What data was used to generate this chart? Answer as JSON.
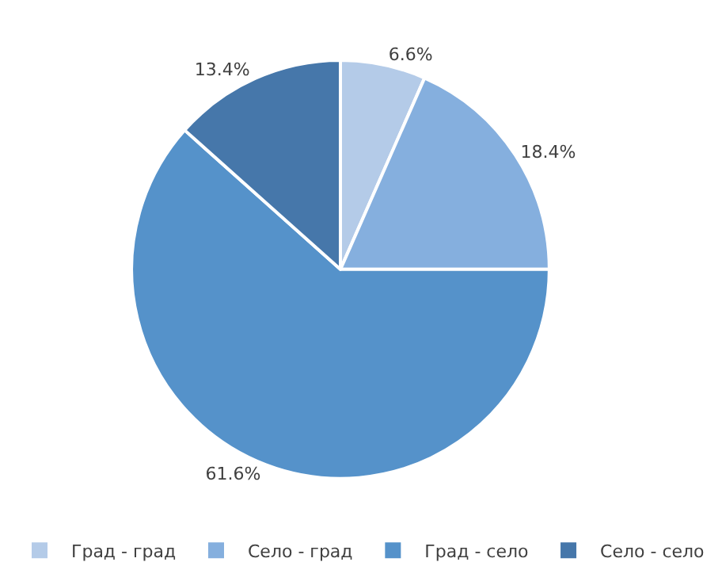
{
  "chart_data": {
    "type": "pie",
    "categories": [
      "Град - град",
      "Село - град",
      "Град - село",
      "Село - село"
    ],
    "values": [
      6.6,
      18.4,
      61.6,
      13.4
    ],
    "value_labels": [
      "6.6%",
      "18.4%",
      "61.6%",
      "13.4%"
    ],
    "colors": [
      "#b4cbe8",
      "#85afde",
      "#5592ca",
      "#4677aa"
    ],
    "legend": "bottom"
  }
}
